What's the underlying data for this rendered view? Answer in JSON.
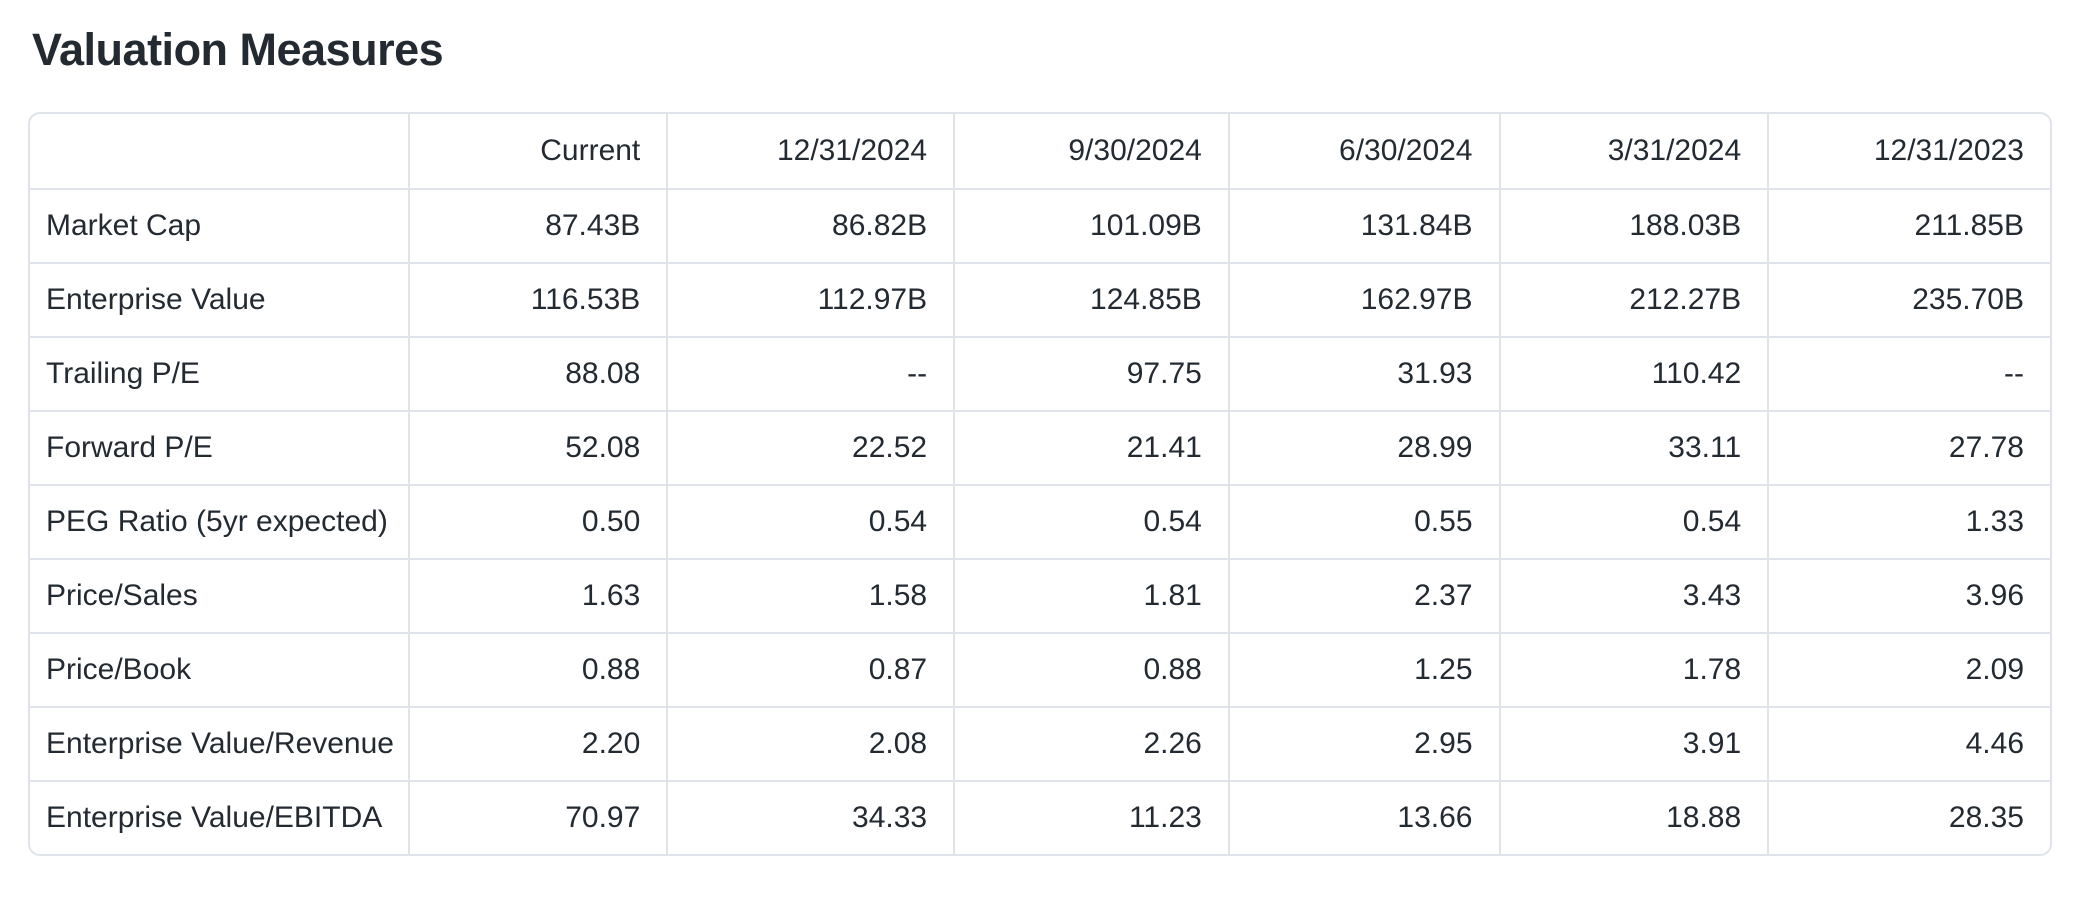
{
  "page": {
    "title": "Valuation Measures"
  },
  "colors": {
    "text": "#232a31",
    "border": "#e0e3e9",
    "background": "#ffffff"
  },
  "chart_data": {
    "type": "table",
    "title": "Valuation Measures",
    "columns": [
      "",
      "Current",
      "12/31/2024",
      "9/30/2024",
      "6/30/2024",
      "3/31/2024",
      "12/31/2023"
    ],
    "rows": [
      {
        "label": "Market Cap",
        "values": [
          "87.43B",
          "86.82B",
          "101.09B",
          "131.84B",
          "188.03B",
          "211.85B"
        ]
      },
      {
        "label": "Enterprise Value",
        "values": [
          "116.53B",
          "112.97B",
          "124.85B",
          "162.97B",
          "212.27B",
          "235.70B"
        ]
      },
      {
        "label": "Trailing P/E",
        "values": [
          "88.08",
          "--",
          "97.75",
          "31.93",
          "110.42",
          "--"
        ]
      },
      {
        "label": "Forward P/E",
        "values": [
          "52.08",
          "22.52",
          "21.41",
          "28.99",
          "33.11",
          "27.78"
        ]
      },
      {
        "label": "PEG Ratio (5yr expected)",
        "values": [
          "0.50",
          "0.54",
          "0.54",
          "0.55",
          "0.54",
          "1.33"
        ]
      },
      {
        "label": "Price/Sales",
        "values": [
          "1.63",
          "1.58",
          "1.81",
          "2.37",
          "3.43",
          "3.96"
        ]
      },
      {
        "label": "Price/Book",
        "values": [
          "0.88",
          "0.87",
          "0.88",
          "1.25",
          "1.78",
          "2.09"
        ]
      },
      {
        "label": "Enterprise Value/Revenue",
        "values": [
          "2.20",
          "2.08",
          "2.26",
          "2.95",
          "3.91",
          "4.46"
        ]
      },
      {
        "label": "Enterprise Value/EBITDA",
        "values": [
          "70.97",
          "34.33",
          "11.23",
          "13.66",
          "18.88",
          "28.35"
        ]
      }
    ],
    "column_widths_pct": [
      18.7,
      12.8,
      14.2,
      13.6,
      13.4,
      13.3,
      14.0
    ]
  }
}
